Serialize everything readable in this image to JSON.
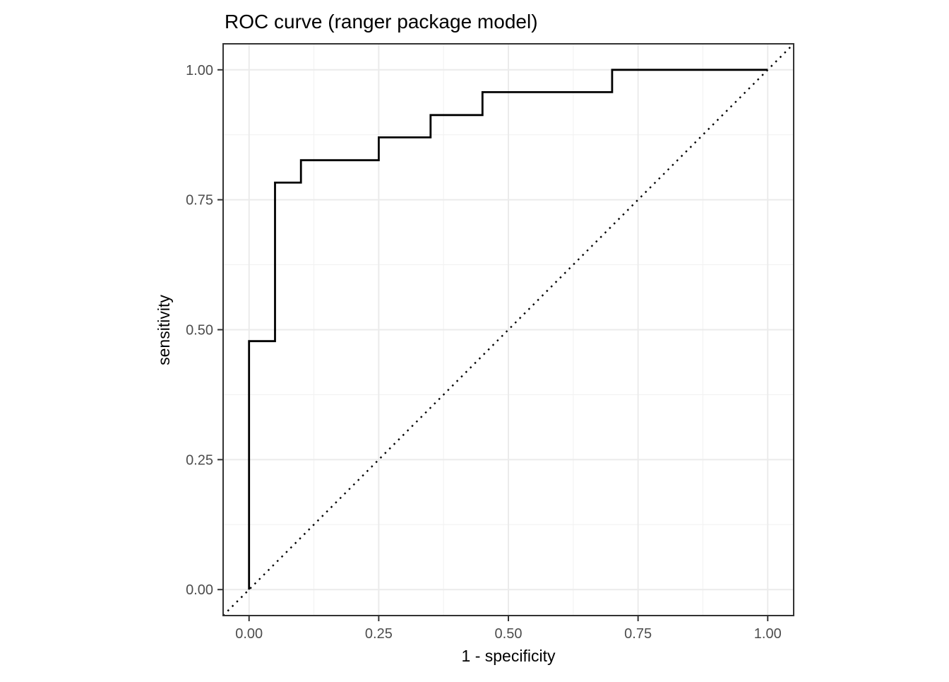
{
  "title": "ROC curve (ranger package model)",
  "colors": {
    "background": "#FFFFFF",
    "panel_background": "#FFFFFF",
    "panel_border": "#333333",
    "grid_major": "#EBEBEB",
    "grid_minor": "#F2F2F2",
    "tick_mark": "#333333",
    "tick_label": "#4D4D4D",
    "curve": "#000000",
    "diagonal": "#000000"
  },
  "chart_data": {
    "type": "line",
    "title": "ROC curve (ranger package model)",
    "xlabel": "1 - specificity",
    "ylabel": "sensitivity",
    "xlim": [
      -0.05,
      1.05
    ],
    "ylim": [
      -0.05,
      1.05
    ],
    "x_ticks": [
      0.0,
      0.25,
      0.5,
      0.75,
      1.0
    ],
    "y_ticks": [
      0.0,
      0.25,
      0.5,
      0.75,
      1.0
    ],
    "x_tick_labels": [
      "0.00",
      "0.25",
      "0.50",
      "0.75",
      "1.00"
    ],
    "y_tick_labels": [
      "0.00",
      "0.25",
      "0.50",
      "0.75",
      "1.00"
    ],
    "minor_ticks": [
      0.125,
      0.375,
      0.625,
      0.875
    ],
    "grid": "major+minor",
    "legend": "none",
    "series": [
      {
        "name": "roc-curve",
        "style": "step-solid",
        "color": "#000000",
        "points": [
          [
            0.0,
            0.0
          ],
          [
            0.0,
            0.478
          ],
          [
            0.05,
            0.478
          ],
          [
            0.05,
            0.783
          ],
          [
            0.1,
            0.783
          ],
          [
            0.1,
            0.826
          ],
          [
            0.25,
            0.826
          ],
          [
            0.25,
            0.87
          ],
          [
            0.35,
            0.87
          ],
          [
            0.35,
            0.913
          ],
          [
            0.45,
            0.913
          ],
          [
            0.45,
            0.957
          ],
          [
            0.7,
            0.957
          ],
          [
            0.7,
            1.0
          ],
          [
            1.0,
            1.0
          ]
        ]
      },
      {
        "name": "chance-diagonal",
        "style": "dotted",
        "color": "#000000",
        "points": [
          [
            -0.05,
            -0.05
          ],
          [
            1.05,
            1.05
          ]
        ]
      }
    ]
  }
}
